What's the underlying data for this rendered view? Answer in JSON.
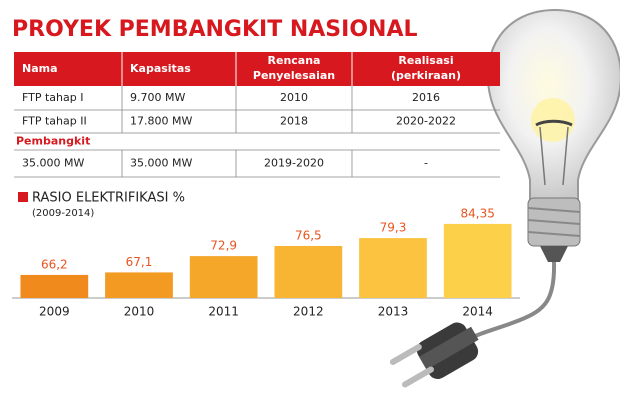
{
  "title": "PROYEK PEMBANGKIT NASIONAL",
  "table": {
    "header": [
      [
        "Nama"
      ],
      [
        "Kapasitas"
      ],
      [
        "Rencana",
        "Penyelesaian"
      ],
      [
        "Realisasi",
        "(perkiraan)"
      ]
    ],
    "rows": [
      [
        "FTP tahap I",
        "9.700 MW",
        "2010",
        "2016"
      ],
      [
        "FTP tahap II",
        "17.800 MW",
        "2018",
        "2020-2022"
      ],
      [
        "Pembangkit"
      ],
      [
        "35.000 MW",
        "35.000 MW",
        "2019-2020",
        "-"
      ]
    ]
  },
  "chart_data": {
    "type": "bar",
    "title": "RASIO ELEKTRIFIKASI %",
    "subtitle": "(2009-2014)",
    "categories": [
      "2009",
      "2010",
      "2011",
      "2012",
      "2013",
      "2014"
    ],
    "values": [
      66.2,
      67.1,
      72.9,
      76.5,
      79.3,
      84.35
    ],
    "value_labels": [
      "66,2",
      "67,1",
      "72,9",
      "76,5",
      "79,3",
      "84,35"
    ],
    "colors": [
      "#f08a1c",
      "#f39a22",
      "#f5a72a",
      "#f8b534",
      "#fbc33f",
      "#fdd04a"
    ],
    "ylim": [
      58,
      90
    ]
  }
}
